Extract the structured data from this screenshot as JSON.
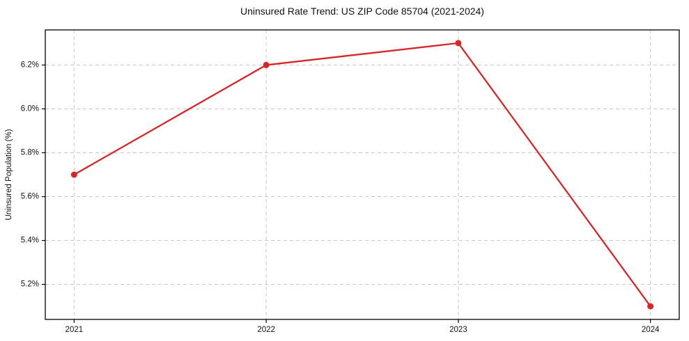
{
  "chart_data": {
    "type": "line",
    "title": "Uninsured Rate Trend: US ZIP Code 85704 (2021-2024)",
    "xlabel": "",
    "ylabel": "Uninsured Population (%)",
    "x": [
      2021,
      2022,
      2023,
      2024
    ],
    "values": [
      5.7,
      6.2,
      6.3,
      5.1
    ],
    "x_ticks": [
      2021,
      2022,
      2023,
      2024
    ],
    "y_ticks": [
      5.2,
      5.4,
      5.6,
      5.8,
      6.0,
      6.2
    ],
    "y_tick_suffix": "%",
    "xlim": [
      2020.85,
      2024.15
    ],
    "ylim": [
      5.04,
      6.36
    ],
    "grid": true,
    "legend": "none",
    "line_color": "#d62728",
    "marker_color": "#d62728",
    "grid_color": "#c8c8c8",
    "spine_color": "#000000",
    "marker": "o"
  }
}
